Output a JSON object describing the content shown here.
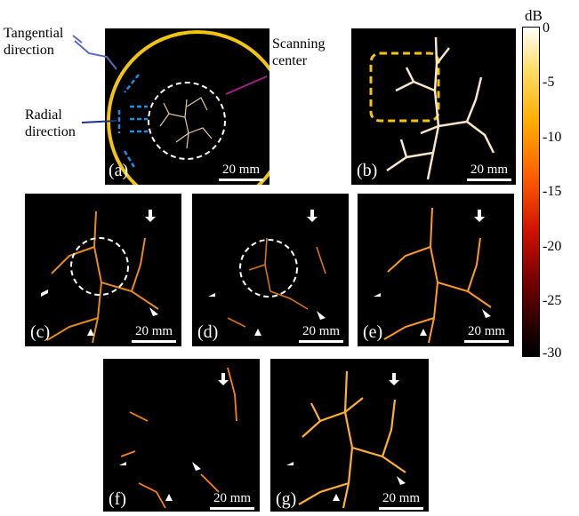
{
  "annotations": {
    "tangential": "Tangential direction",
    "radial": "Radial direction",
    "scanning_center": "Scanning center"
  },
  "panels": [
    {
      "id": "a",
      "label": "(a)",
      "scale": "20 mm"
    },
    {
      "id": "b",
      "label": "(b)",
      "scale": "20 mm"
    },
    {
      "id": "c",
      "label": "(c)",
      "scale": "20 mm"
    },
    {
      "id": "d",
      "label": "(d)",
      "scale": "20 mm"
    },
    {
      "id": "e",
      "label": "(e)",
      "scale": "20 mm"
    },
    {
      "id": "f",
      "label": "(f)",
      "scale": "20 mm"
    },
    {
      "id": "g",
      "label": "(g)",
      "scale": "20 mm"
    }
  ],
  "colorbar": {
    "unit": "dB",
    "ticks": [
      "0",
      "-5",
      "-10",
      "-15",
      "-20",
      "-25",
      "-30"
    ],
    "colormap": [
      "#ffffff",
      "#ffe070",
      "#ffb000",
      "#ff6000",
      "#d01000",
      "#700000",
      "#200000",
      "#000000"
    ]
  },
  "colors": {
    "ring": "#f2c50f",
    "dashed_box": "#f2c50f",
    "arrow_blue": "#1e8fe8",
    "tangential_line": "#5a6bc0",
    "radial_line": "#1e2f8a",
    "center_line": "#a0208a"
  }
}
